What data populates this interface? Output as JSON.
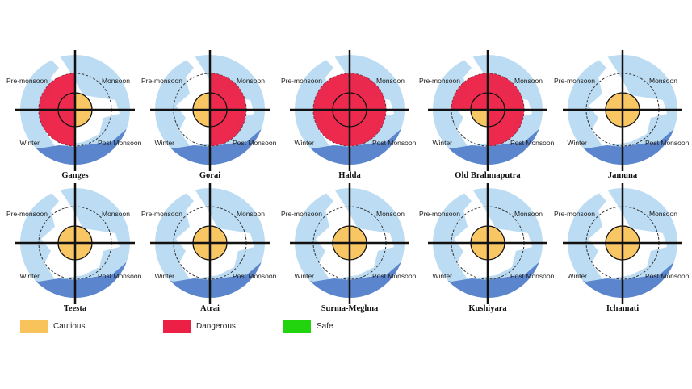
{
  "chart_data": {
    "type": "radial-status-diagram",
    "quadrants": {
      "top_left": "Pre-monsoon",
      "top_right": "Monsoon",
      "bottom_left": "Winter",
      "bottom_right": "Post Monsoon"
    },
    "status_colors": {
      "Cautious": "#f9c35c",
      "Dangerous": "#ec1f45",
      "Safe": "#22d40e"
    },
    "legend": [
      {
        "label": "Cautious",
        "color": "#f9c35c"
      },
      {
        "label": "Dangerous",
        "color": "#ec1f45"
      },
      {
        "label": "Safe",
        "color": "#22d40e"
      }
    ],
    "rivers": [
      {
        "name": "Ganges",
        "status": {
          "Pre-monsoon": "Dangerous",
          "Monsoon": "Cautious",
          "Winter": "Dangerous",
          "Post Monsoon": "Cautious"
        }
      },
      {
        "name": "Gorai",
        "status": {
          "Pre-monsoon": "Cautious",
          "Monsoon": "Dangerous",
          "Winter": "Cautious",
          "Post Monsoon": "Dangerous"
        }
      },
      {
        "name": "Halda",
        "status": {
          "Pre-monsoon": "Dangerous",
          "Monsoon": "Dangerous",
          "Winter": "Dangerous",
          "Post Monsoon": "Dangerous"
        }
      },
      {
        "name": "Old Brahmaputra",
        "status": {
          "Pre-monsoon": "Dangerous",
          "Monsoon": "Dangerous",
          "Winter": "Cautious",
          "Post Monsoon": "Dangerous"
        }
      },
      {
        "name": "Jamuna",
        "status": {
          "Pre-monsoon": "Cautious",
          "Monsoon": "Cautious",
          "Winter": "Cautious",
          "Post Monsoon": "Cautious"
        }
      },
      {
        "name": "Teesta",
        "status": {
          "Pre-monsoon": "Cautious",
          "Monsoon": "Cautious",
          "Winter": "Cautious",
          "Post Monsoon": "Cautious"
        }
      },
      {
        "name": "Atrai",
        "status": {
          "Pre-monsoon": "Cautious",
          "Monsoon": "Cautious",
          "Winter": "Cautious",
          "Post Monsoon": "Cautious"
        }
      },
      {
        "name": "Surma-Meghna",
        "status": {
          "Pre-monsoon": "Cautious",
          "Monsoon": "Cautious",
          "Winter": "Cautious",
          "Post Monsoon": "Cautious"
        }
      },
      {
        "name": "Kushiyara",
        "status": {
          "Pre-monsoon": "Cautious",
          "Monsoon": "Cautious",
          "Winter": "Cautious",
          "Post Monsoon": "Cautious"
        }
      },
      {
        "name": "Ichamati",
        "status": {
          "Pre-monsoon": "Cautious",
          "Monsoon": "Cautious",
          "Winter": "Cautious",
          "Post Monsoon": "Cautious"
        }
      }
    ]
  }
}
